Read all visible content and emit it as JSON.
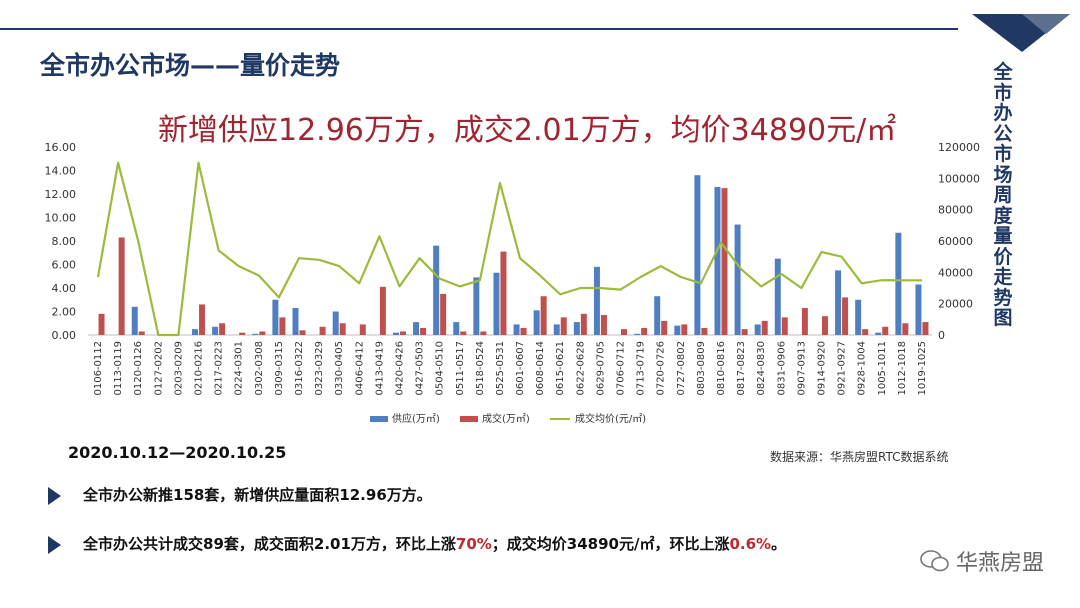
{
  "page": {
    "title": "全市办公市场——量价走势",
    "vertical_title": "全市办公市场周度量价走势图",
    "headline": "新增供应12.96万方，成交2.01万方，均价34890元/㎡",
    "date_range": "2020.10.12—2020.10.25",
    "source": "数据来源：华燕房盟RTC数据系统",
    "bullet1": "全市办公新推158套，新增供应量面积12.96万方。",
    "bullet2_a": "全市办公共计成交89套，成交面积2.01万方，环比上涨",
    "bullet2_h1": "70%",
    "bullet2_b": "；成交均价34890元/㎡，环比上涨",
    "bullet2_h2": "0.6%",
    "bullet2_c": "。",
    "brand": "华燕房盟"
  },
  "colors": {
    "supply": "#4f7fc0",
    "deal": "#c0504d",
    "price": "#9bbb3b",
    "accent": "#1f3864",
    "highlight": "#c0282d"
  },
  "chart_data": {
    "type": "bar",
    "categories": [
      "0106-0112",
      "0113-0119",
      "0120-0126",
      "0127-0202",
      "0203-0209",
      "0210-0216",
      "0217-0223",
      "0224-0301",
      "0302-0308",
      "0309-0315",
      "0316-0322",
      "0323-0329",
      "0330-0405",
      "0406-0412",
      "0413-0419",
      "0420-0426",
      "0427-0503",
      "0504-0510",
      "0511-0517",
      "0518-0524",
      "0525-0531",
      "0601-0607",
      "0608-0614",
      "0615-0621",
      "0622-0628",
      "0629-0705",
      "0706-0712",
      "0713-0719",
      "0720-0726",
      "0727-0802",
      "0803-0809",
      "0810-0816",
      "0817-0823",
      "0824-0830",
      "0831-0906",
      "0907-0913",
      "0914-0920",
      "0921-0927",
      "0928-1004",
      "1005-1011",
      "1012-1018",
      "1019-1025"
    ],
    "series": [
      {
        "name": "供应(万㎡)",
        "type": "bar",
        "axis": "left",
        "values": [
          0,
          0,
          2.4,
          0,
          0,
          0.5,
          0.7,
          0,
          0.1,
          3.0,
          2.3,
          0,
          2.0,
          0,
          0,
          0.2,
          1.1,
          7.6,
          1.1,
          4.9,
          5.3,
          0.9,
          2.1,
          0.9,
          1.1,
          5.8,
          0,
          0.1,
          3.3,
          0.8,
          13.6,
          12.6,
          9.4,
          0.9,
          6.5,
          0,
          0,
          5.5,
          3.0,
          0.2,
          8.7,
          4.3
        ]
      },
      {
        "name": "成交(万㎡)",
        "type": "bar",
        "axis": "left",
        "values": [
          1.8,
          8.3,
          0.3,
          0,
          0,
          2.6,
          1.0,
          0.2,
          0.3,
          1.5,
          0.4,
          0.7,
          1.0,
          0.9,
          4.1,
          0.3,
          0.6,
          3.5,
          0.3,
          0.3,
          7.1,
          0.6,
          3.3,
          1.5,
          1.8,
          1.7,
          0.5,
          0.6,
          1.2,
          0.9,
          0.6,
          12.5,
          0.5,
          1.2,
          1.5,
          2.3,
          1.6,
          3.2,
          0.5,
          0.7,
          1.0,
          1.1
        ]
      },
      {
        "name": "成交均价(元/㎡)",
        "type": "line",
        "axis": "right",
        "values": [
          37000,
          110000,
          60000,
          0,
          0,
          110000,
          54000,
          44000,
          38000,
          24000,
          49000,
          48000,
          44000,
          33000,
          63000,
          31000,
          49000,
          36000,
          31000,
          35000,
          97000,
          49000,
          38000,
          26000,
          30000,
          30000,
          29000,
          37000,
          44000,
          37000,
          33000,
          59000,
          42000,
          31000,
          39000,
          30000,
          53000,
          50000,
          33000,
          35000,
          34900,
          34890
        ]
      }
    ],
    "ylim_left": [
      0,
      16
    ],
    "yticks_left": [
      "0.00",
      "2.00",
      "4.00",
      "6.00",
      "8.00",
      "10.00",
      "12.00",
      "14.00",
      "16.00"
    ],
    "ylim_right": [
      0,
      120000
    ],
    "yticks_right": [
      "0",
      "20000",
      "40000",
      "60000",
      "80000",
      "100000",
      "120000"
    ],
    "legend_position": "bottom"
  }
}
